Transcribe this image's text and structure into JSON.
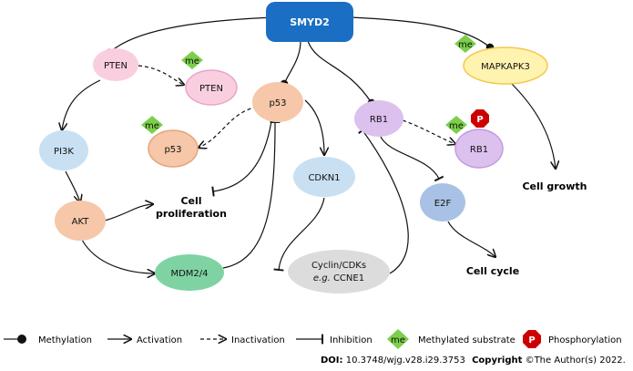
{
  "nodes": {
    "smyd2": "SMYD2",
    "pten": "PTEN",
    "pten_me": "PTEN",
    "pi3k": "PI3K",
    "akt": "AKT",
    "mdm24": "MDM2/4",
    "p53": "p53",
    "p53_me": "p53",
    "cdkn1": "CDKN1",
    "cyclin_line1": "Cyclin/CDKs",
    "cyclin_line2_prefix": "e.g.",
    "cyclin_line2_suffix": "CCNE1",
    "rb1": "RB1",
    "rb1_me": "RB1",
    "e2f": "E2F",
    "mapkapk3": "MAPKAPK3"
  },
  "badges": {
    "me": "me",
    "p": "P"
  },
  "outcomes": {
    "cell_prolif_line1": "Cell",
    "cell_prolif_line2": "proliferation",
    "cell_cycle": "Cell cycle",
    "cell_growth": "Cell growth"
  },
  "legend": {
    "methylation": "Methylation",
    "activation": "Activation",
    "inactivation": "Inactivation",
    "inhibition": "Inhibition",
    "methylated_substrate": "Methylated substrate",
    "phosphorylation": "Phosphorylation"
  },
  "footer": {
    "doi_label": "DOI:",
    "doi_value": "10.3748/wjg.v28.i29.3753",
    "copyright_label": "Copyright",
    "copyright_value": "©The Author(s) 2022."
  },
  "colors": {
    "smyd2_fill": "#1a6fc4",
    "pten_fill": "#f9cfe0",
    "pi3k_fill": "#c9e0f2",
    "akt_fill": "#f6c7a9",
    "mdm_fill": "#7fd3a3",
    "p53_fill": "#f6c7a9",
    "cdkn1_fill": "#c9e0f2",
    "cyclin_fill": "#dcdcdc",
    "rb1_fill": "#dcc0ee",
    "e2f_fill": "#a9c1e4",
    "mapk_fill": "#fff3b0",
    "me_badge": "#7ccf4a",
    "p_badge": "#cc0000"
  }
}
